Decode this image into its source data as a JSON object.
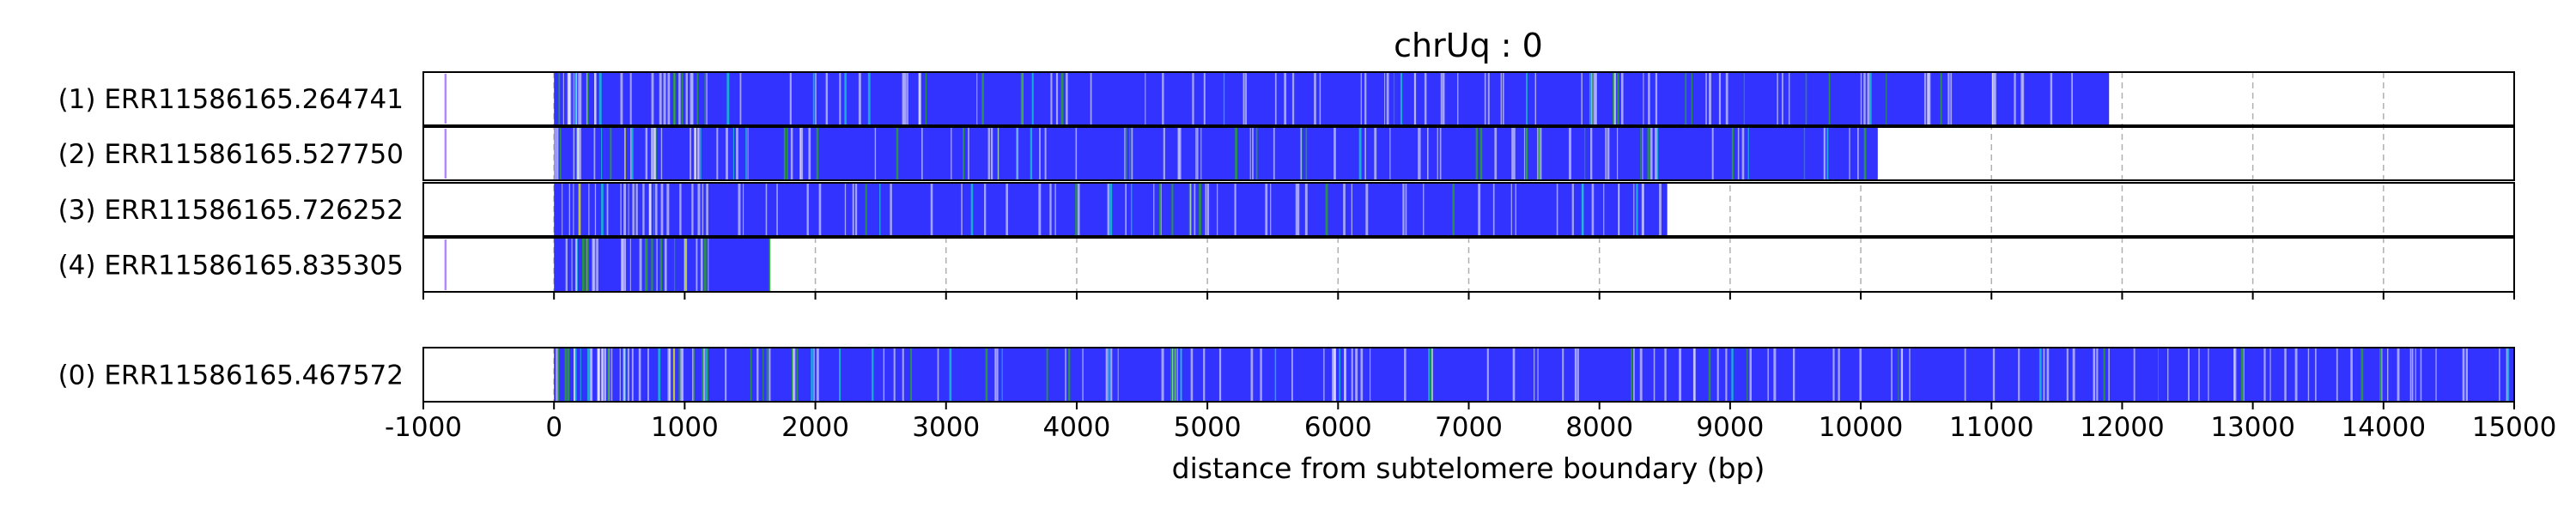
{
  "chart_data": {
    "type": "genome-track",
    "title": "chrUq : 0",
    "xlabel": "distance from subtelomere boundary (bp)",
    "xlim": [
      -1000,
      15000
    ],
    "xticks": [
      -1000,
      0,
      1000,
      2000,
      3000,
      4000,
      5000,
      6000,
      7000,
      8000,
      9000,
      10000,
      11000,
      12000,
      13000,
      14000,
      15000
    ],
    "xtick_labels": [
      "-1000",
      "0",
      "1000",
      "2000",
      "3000",
      "4000",
      "5000",
      "6000",
      "7000",
      "8000",
      "9000",
      "10000",
      "11000",
      "12000",
      "13000",
      "14000",
      "15000"
    ],
    "vertical_grid": true,
    "colors": {
      "read_fill": "#3333ff",
      "stripe_white": "#ffffff",
      "stripe_green": "#2ca02c",
      "stripe_cyan": "#17becf",
      "stripe_yellow": "#d4d420",
      "marker": "#b388ff",
      "grid": "#b0b0b0"
    },
    "reads": [
      {
        "label": "(1) ERR11586165.264741",
        "start": 0,
        "end": 11900,
        "marker": -830,
        "group": "top"
      },
      {
        "label": "(2) ERR11586165.527750",
        "start": 0,
        "end": 10130,
        "marker": -830,
        "group": "top"
      },
      {
        "label": "(3) ERR11586165.726252",
        "start": 0,
        "end": 8520,
        "marker": null,
        "group": "top"
      },
      {
        "label": "(4) ERR11586165.835305",
        "start": 0,
        "end": 1650,
        "marker": -830,
        "group": "top"
      },
      {
        "label": "(0) ERR11586165.467572",
        "start": 0,
        "end": 15000,
        "marker": null,
        "group": "bottom"
      }
    ]
  }
}
